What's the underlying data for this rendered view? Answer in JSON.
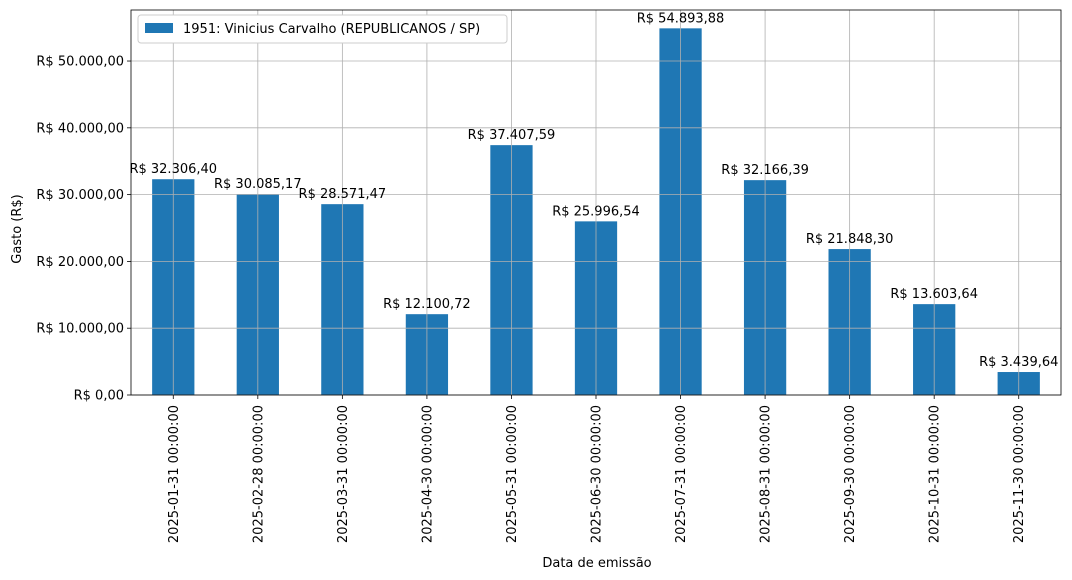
{
  "chart_data": {
    "type": "bar",
    "title": "",
    "xlabel": "Data de emissão",
    "ylabel": "Gasto (R$)",
    "ylim": [
      0,
      57640
    ],
    "yticks": [
      0,
      10000,
      20000,
      30000,
      40000,
      50000
    ],
    "ytick_labels": [
      "R$ 0,00",
      "R$ 10.000,00",
      "R$ 20.000,00",
      "R$ 30.000,00",
      "R$ 40.000,00",
      "R$ 50.000,00"
    ],
    "grid": true,
    "legend_position": "top-left",
    "categories": [
      "2025-01-31 00:00:00",
      "2025-02-28 00:00:00",
      "2025-03-31 00:00:00",
      "2025-04-30 00:00:00",
      "2025-05-31 00:00:00",
      "2025-06-30 00:00:00",
      "2025-07-31 00:00:00",
      "2025-08-31 00:00:00",
      "2025-09-30 00:00:00",
      "2025-10-31 00:00:00",
      "2025-11-30 00:00:00"
    ],
    "series": [
      {
        "name": "1951: Vinicius Carvalho (REPUBLICANOS / SP)",
        "color": "#1f77b4",
        "values": [
          32306.4,
          30085.17,
          28571.47,
          12100.72,
          37407.59,
          25996.54,
          54893.88,
          32166.39,
          21848.3,
          13603.64,
          3439.64
        ],
        "labels": [
          "R$ 32.306,40",
          "R$ 30.085,17",
          "R$ 28.571,47",
          "R$ 12.100,72",
          "R$ 37.407,59",
          "R$ 25.996,54",
          "R$ 54.893,88",
          "R$ 32.166,39",
          "R$ 21.848,30",
          "R$ 13.603,64",
          "R$ 3.439,64"
        ]
      }
    ]
  }
}
